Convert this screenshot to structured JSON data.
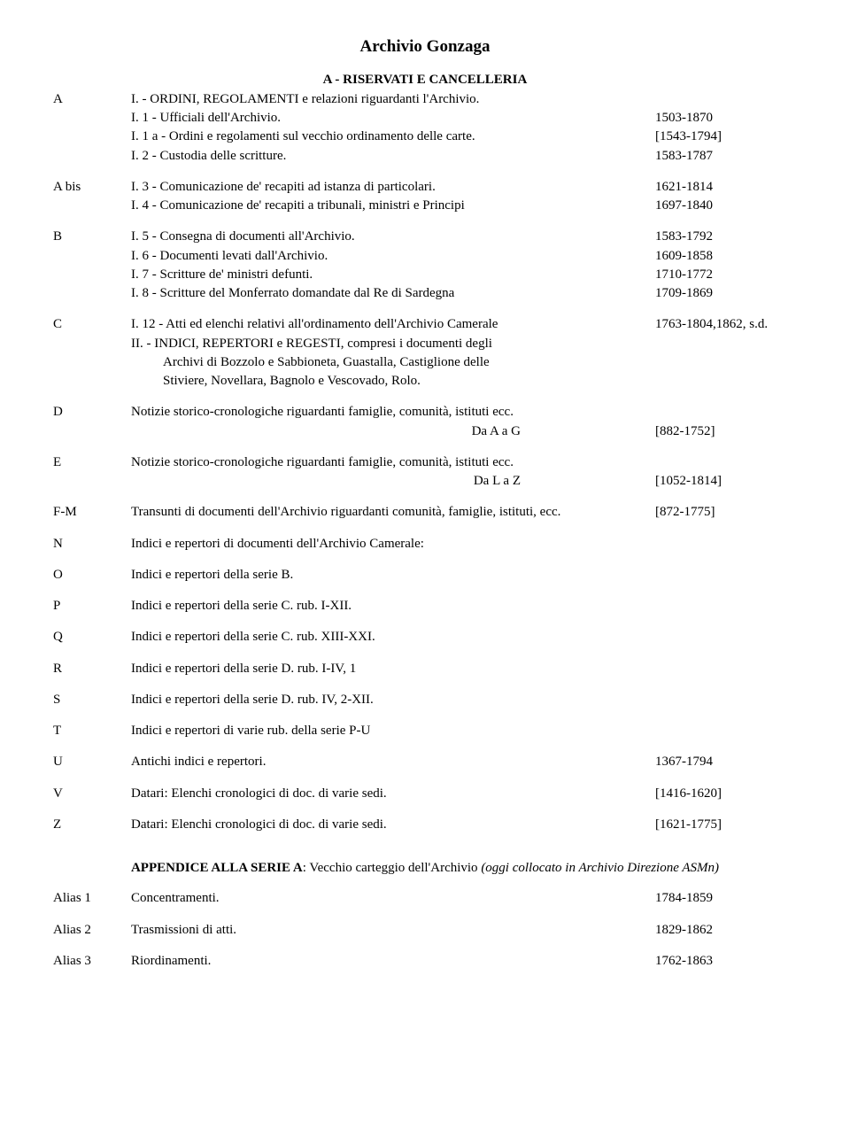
{
  "title": "Archivio Gonzaga",
  "subtitle": "A - RISERVATI E CANCELLERIA",
  "rows": [
    {
      "code": "A",
      "lines": [
        {
          "text": "I. -  ORDINI, REGOLAMENTI e relazioni riguardanti l'Archivio.",
          "date": ""
        },
        {
          "text": "I. 1 - Ufficiali dell'Archivio.",
          "date": "1503-1870"
        },
        {
          "text": "I. 1 a - Ordini e regolamenti sul vecchio ordinamento delle carte.",
          "date": "[1543-1794]"
        },
        {
          "text": "I. 2 - Custodia delle scritture.",
          "date": "1583-1787"
        }
      ]
    },
    {
      "code": "A bis",
      "lines": [
        {
          "text": "I. 3 - Comunicazione de' recapiti ad istanza di particolari.",
          "date": "1621-1814"
        },
        {
          "text": "I. 4 - Comunicazione de' recapiti a tribunali, ministri e Principi",
          "date": "1697-1840"
        }
      ]
    },
    {
      "code": "B",
      "lines": [
        {
          "text": "I. 5 - Consegna di documenti all'Archivio.",
          "date": "1583-1792"
        },
        {
          "text": "I. 6 - Documenti levati dall'Archivio.",
          "date": "1609-1858"
        },
        {
          "text": "I. 7 - Scritture de' ministri defunti.",
          "date": "1710-1772"
        },
        {
          "text": "I. 8 - Scritture del Monferrato domandate dal Re di Sardegna",
          "date": "1709-1869"
        }
      ]
    },
    {
      "code": "C",
      "lines": [
        {
          "text": "I. 12 - Atti ed elenchi relativi all'ordinamento dell'Archivio Camerale",
          "date": "1763-1804,1862, s.d."
        },
        {
          "text": "II. - INDICI, REPERTORI e REGESTI, compresi i documenti degli",
          "date": ""
        },
        {
          "text": "Archivi di Bozzolo e Sabbioneta, Guastalla, Castiglione delle",
          "date": "",
          "indent": true
        },
        {
          "text": "Stiviere, Novellara, Bagnolo e Vescovado, Rolo.",
          "date": "",
          "indent": true
        }
      ]
    },
    {
      "code": "D",
      "lines": [
        {
          "text": "Notizie storico-cronologiche riguardanti famiglie, comunità, istituti ecc.",
          "date": ""
        },
        {
          "text": "Da   A a G",
          "date": "[882-1752]",
          "rightAlign": true
        }
      ]
    },
    {
      "code": "E",
      "lines": [
        {
          "text": "Notizie storico-cronologiche riguardanti famiglie, comunità, istituti ecc.",
          "date": ""
        },
        {
          "text": "Da   L a Z",
          "date": "[1052-1814]",
          "rightAlign": true
        }
      ]
    },
    {
      "code": "F-M",
      "lines": [
        {
          "text": "Transunti di documenti dell'Archivio riguardanti comunità, famiglie, istituti, ecc.",
          "date": "[872-1775]"
        }
      ]
    },
    {
      "code": "N",
      "lines": [
        {
          "text": "Indici e repertori di documenti dell'Archivio Camerale:",
          "date": ""
        }
      ]
    },
    {
      "code": "O",
      "lines": [
        {
          "text": "Indici e repertori della serie B.",
          "date": ""
        }
      ]
    },
    {
      "code": "P",
      "lines": [
        {
          "text": "Indici e repertori della serie C. rub. I-XII.",
          "date": ""
        }
      ]
    },
    {
      "code": "Q",
      "lines": [
        {
          "text": "Indici e repertori della serie C. rub. XIII-XXI.",
          "date": ""
        }
      ]
    },
    {
      "code": "R",
      "lines": [
        {
          "text": "Indici e repertori della serie D. rub. I-IV, 1",
          "date": ""
        }
      ]
    },
    {
      "code": "S",
      "lines": [
        {
          "text": "Indici e repertori della serie D. rub. IV, 2-XII.",
          "date": ""
        }
      ]
    },
    {
      "code": "T",
      "lines": [
        {
          "text": "Indici e repertori di varie rub. della serie P-U",
          "date": ""
        }
      ]
    },
    {
      "code": "U",
      "lines": [
        {
          "text": "Antichi indici e repertori.",
          "date": "1367-1794"
        }
      ]
    },
    {
      "code": "V",
      "lines": [
        {
          "text": "Datari: Elenchi cronologici di doc. di varie sedi.",
          "date": "[1416-1620]"
        }
      ]
    },
    {
      "code": "Z",
      "lines": [
        {
          "text": "Datari: Elenchi cronologici di doc. di varie sedi.",
          "date": "[1621-1775]"
        }
      ]
    }
  ],
  "appendix": {
    "label": "APPENDICE ALLA SERIE A",
    "text": ": Vecchio carteggio dell'Archivio ",
    "italic": "(oggi collocato in Archivio Direzione ASMn)"
  },
  "aliases": [
    {
      "code": "Alias 1",
      "text": "Concentramenti.",
      "date": "1784-1859"
    },
    {
      "code": "Alias 2",
      "text": "Trasmissioni di atti.",
      "date": "1829-1862"
    },
    {
      "code": "Alias 3",
      "text": "Riordinamenti.",
      "date": "1762-1863"
    }
  ]
}
